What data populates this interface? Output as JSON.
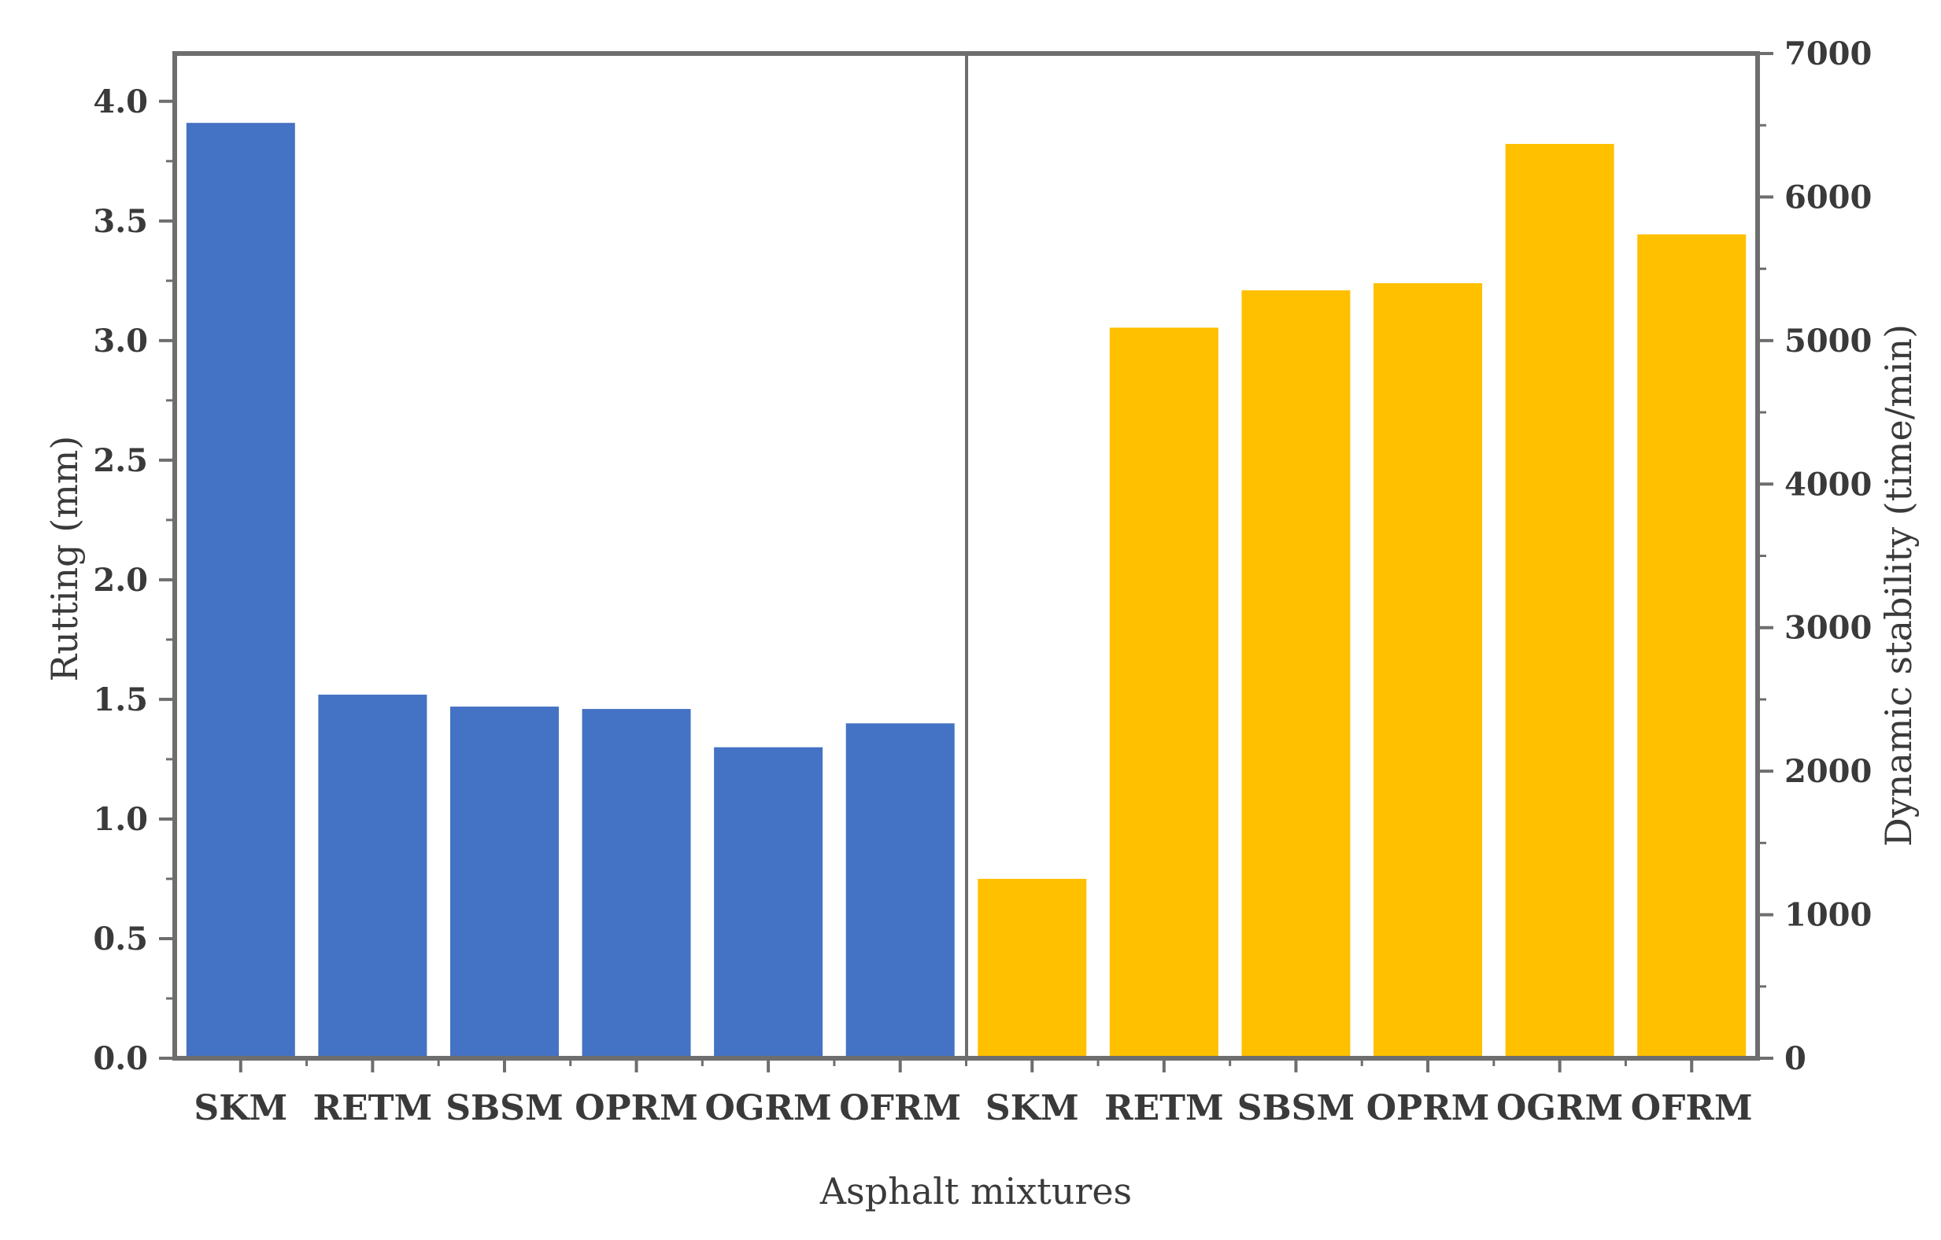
{
  "chart_data": {
    "type": "bar",
    "xlabel": "Asphalt mixtures",
    "left_panel": {
      "ylabel": "Rutting (mm)",
      "ylim": [
        0,
        4.2
      ],
      "ticks": [
        "0.0",
        "0.5",
        "1.0",
        "1.5",
        "2.0",
        "2.5",
        "3.0",
        "3.5",
        "4.0"
      ],
      "categories": [
        "SKM",
        "RETM",
        "SBSM",
        "OPRM",
        "OGRM",
        "OFRM"
      ],
      "values": [
        3.91,
        1.52,
        1.47,
        1.46,
        1.3,
        1.4
      ],
      "color": "#4472c4"
    },
    "right_panel": {
      "ylabel": "Dynamic stability (time/min)",
      "ylim": [
        0,
        7000
      ],
      "ticks": [
        "0",
        "1000",
        "2000",
        "3000",
        "4000",
        "5000",
        "6000",
        "7000"
      ],
      "categories": [
        "SKM",
        "RETM",
        "SBSM",
        "OPRM",
        "OGRM",
        "OFRM"
      ],
      "values": [
        1250,
        5090,
        5350,
        5400,
        6370,
        5740
      ],
      "color": "#ffc000"
    },
    "grid": false,
    "axis_color": "#6e6e6e"
  }
}
